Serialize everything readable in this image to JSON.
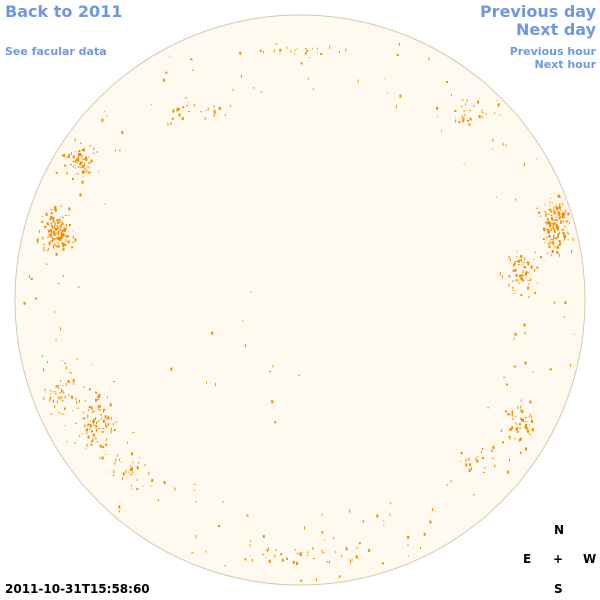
{
  "nav": {
    "back_label": "Back to 2011",
    "facular_label": "See facular data",
    "prev_day_label": "Previous day",
    "next_day_label": "Next day",
    "prev_hour_label": "Previous hour",
    "next_hour_label": "Next hour"
  },
  "compass": {
    "north": "N",
    "east": "E",
    "center": "+",
    "west": "W",
    "south": "S"
  },
  "timestamp": "2011-10-31T15:58:60",
  "colors": {
    "disk_fill": "#fffaf0",
    "disk_border": "#d8c8ae",
    "marks": "#f08c00",
    "link": "#6f98e0"
  }
}
